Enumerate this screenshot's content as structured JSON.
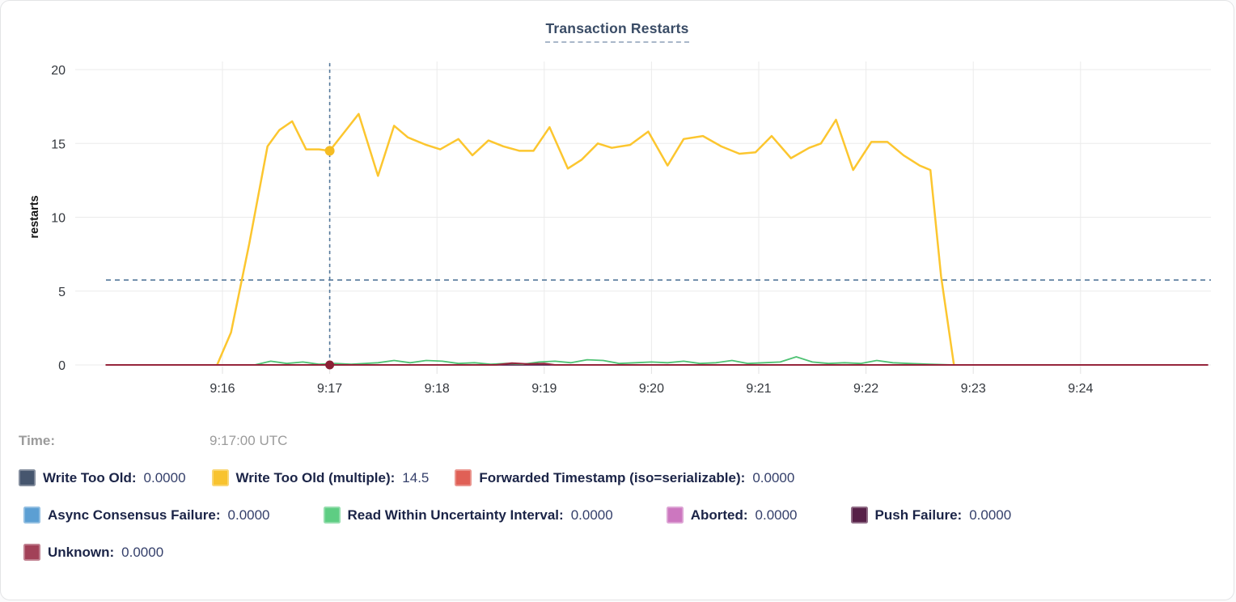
{
  "card": {
    "title": "Transaction Restarts"
  },
  "time_row": {
    "label": "Time:",
    "value": "9:17:00 UTC"
  },
  "legend": {
    "rows": [
      [
        {
          "id": "write-too-old",
          "label": "Write Too Old:",
          "value": "0.0000",
          "color": "#46566E"
        },
        {
          "id": "write-too-old-multiple",
          "label": "Write Too Old (multiple):",
          "value": "14.5",
          "color": "#F8C32F"
        },
        {
          "id": "forwarded-timestamp",
          "label": "Forwarded Timestamp (iso=serializable):",
          "value": "0.0000",
          "color": "#E06056"
        }
      ],
      [
        {
          "id": "async-consensus-failure",
          "label": "Async Consensus Failure:",
          "value": "0.0000",
          "color": "#5C9FD3"
        },
        {
          "id": "read-within-uncertainty-interval",
          "label": "Read Within Uncertainty Interval:",
          "value": "0.0000",
          "color": "#5ECD83"
        },
        {
          "id": "aborted",
          "label": "Aborted:",
          "value": "0.0000",
          "color": "#CC77BF"
        },
        {
          "id": "push-failure",
          "label": "Push Failure:",
          "value": "0.0000",
          "color": "#572148"
        }
      ],
      [
        {
          "id": "unknown",
          "label": "Unknown:",
          "value": "0.0000",
          "color": "#A24158"
        }
      ]
    ]
  },
  "chart_data": {
    "type": "line",
    "title": "Transaction Restarts",
    "xlabel": "",
    "ylabel": "restarts",
    "ylim": [
      0,
      20
    ],
    "yticks": [
      0,
      5,
      10,
      15,
      20
    ],
    "xtick_labels": [
      "9:16",
      "9:17",
      "9:18",
      "9:19",
      "9:20",
      "9:21",
      "9:22",
      "9:23",
      "9:24"
    ],
    "xtick_minutes": [
      16,
      17,
      18,
      19,
      20,
      21,
      22,
      23,
      24
    ],
    "x_domain_minutes": [
      14.91,
      25.19
    ],
    "grid": true,
    "legend_position": "bottom-left",
    "guides": {
      "crosshair_time_label": "9:17:00 UTC",
      "crosshair_minutes": 17.0,
      "horizontal_dashed_value": 5.75
    },
    "cursor_points": [
      {
        "series": "Write Too Old (multiple)",
        "t": 17.0,
        "v": 14.5,
        "color": "#F5BC22",
        "r": 6
      },
      {
        "series": "Unknown",
        "t": 17.0,
        "v": 0,
        "color": "#8C2135",
        "r": 5.5
      }
    ],
    "series": [
      {
        "id": "write-too-old",
        "name": "Write Too Old",
        "color": "#46566E",
        "width": 1.5,
        "points": [
          [
            15.95,
            0
          ],
          [
            22.82,
            0
          ]
        ]
      },
      {
        "id": "forwarded-timestamp",
        "name": "Forwarded Timestamp (iso=serializable)",
        "color": "#E06056",
        "width": 1.5,
        "points": [
          [
            15.95,
            0
          ],
          [
            22.82,
            0
          ]
        ]
      },
      {
        "id": "async-consensus-failure",
        "name": "Async Consensus Failure",
        "color": "#5C9FD3",
        "width": 1.5,
        "points": [
          [
            15.95,
            0
          ],
          [
            22.82,
            0
          ]
        ]
      },
      {
        "id": "aborted",
        "name": "Aborted",
        "color": "#CC77BF",
        "width": 1.5,
        "points": [
          [
            15.95,
            0
          ],
          [
            22.82,
            0
          ]
        ]
      },
      {
        "id": "push-failure",
        "name": "Push Failure",
        "color": "#572148",
        "width": 1.5,
        "points": [
          [
            15.95,
            0
          ],
          [
            22.82,
            0
          ]
        ]
      },
      {
        "id": "read-within-uncertainty-interval",
        "name": "Read Within Uncertainty Interval",
        "color": "#4EC273",
        "width": 1.8,
        "points": [
          [
            15.95,
            0
          ],
          [
            16.3,
            0
          ],
          [
            16.45,
            0.25
          ],
          [
            16.6,
            0.1
          ],
          [
            16.75,
            0.2
          ],
          [
            16.9,
            0.05
          ],
          [
            17.05,
            0.1
          ],
          [
            17.2,
            0.05
          ],
          [
            17.45,
            0.15
          ],
          [
            17.6,
            0.3
          ],
          [
            17.75,
            0.15
          ],
          [
            17.9,
            0.3
          ],
          [
            18.05,
            0.25
          ],
          [
            18.2,
            0.1
          ],
          [
            18.35,
            0.15
          ],
          [
            18.5,
            0.05
          ],
          [
            18.65,
            0.1
          ],
          [
            18.8,
            0.05
          ],
          [
            18.95,
            0.2
          ],
          [
            19.1,
            0.25
          ],
          [
            19.25,
            0.15
          ],
          [
            19.4,
            0.35
          ],
          [
            19.55,
            0.3
          ],
          [
            19.7,
            0.1
          ],
          [
            19.85,
            0.15
          ],
          [
            20.0,
            0.2
          ],
          [
            20.15,
            0.15
          ],
          [
            20.3,
            0.25
          ],
          [
            20.45,
            0.1
          ],
          [
            20.6,
            0.15
          ],
          [
            20.75,
            0.3
          ],
          [
            20.9,
            0.1
          ],
          [
            21.05,
            0.15
          ],
          [
            21.2,
            0.2
          ],
          [
            21.35,
            0.55
          ],
          [
            21.5,
            0.2
          ],
          [
            21.65,
            0.1
          ],
          [
            21.8,
            0.15
          ],
          [
            21.95,
            0.1
          ],
          [
            22.1,
            0.3
          ],
          [
            22.25,
            0.15
          ],
          [
            22.4,
            0.1
          ],
          [
            22.6,
            0.05
          ],
          [
            22.82,
            0
          ]
        ]
      },
      {
        "id": "write-too-old-multiple",
        "name": "Write Too Old (multiple)",
        "color": "#FCC62F",
        "width": 2.5,
        "points": [
          [
            15.95,
            0
          ],
          [
            16.08,
            2.2
          ],
          [
            16.25,
            8.2
          ],
          [
            16.42,
            14.8
          ],
          [
            16.53,
            15.9
          ],
          [
            16.65,
            16.5
          ],
          [
            16.78,
            14.6
          ],
          [
            16.9,
            14.6
          ],
          [
            17.0,
            14.5
          ],
          [
            17.13,
            15.7
          ],
          [
            17.27,
            17.0
          ],
          [
            17.45,
            12.8
          ],
          [
            17.6,
            16.2
          ],
          [
            17.73,
            15.4
          ],
          [
            17.9,
            14.9
          ],
          [
            18.03,
            14.6
          ],
          [
            18.2,
            15.3
          ],
          [
            18.33,
            14.2
          ],
          [
            18.48,
            15.2
          ],
          [
            18.62,
            14.8
          ],
          [
            18.77,
            14.5
          ],
          [
            18.9,
            14.5
          ],
          [
            19.05,
            16.1
          ],
          [
            19.22,
            13.3
          ],
          [
            19.35,
            13.9
          ],
          [
            19.5,
            15.0
          ],
          [
            19.63,
            14.7
          ],
          [
            19.8,
            14.9
          ],
          [
            19.97,
            15.8
          ],
          [
            20.15,
            13.5
          ],
          [
            20.3,
            15.3
          ],
          [
            20.48,
            15.5
          ],
          [
            20.65,
            14.8
          ],
          [
            20.82,
            14.3
          ],
          [
            20.97,
            14.4
          ],
          [
            21.12,
            15.5
          ],
          [
            21.3,
            14.0
          ],
          [
            21.47,
            14.7
          ],
          [
            21.58,
            15.0
          ],
          [
            21.72,
            16.6
          ],
          [
            21.88,
            13.2
          ],
          [
            22.05,
            15.1
          ],
          [
            22.2,
            15.1
          ],
          [
            22.35,
            14.2
          ],
          [
            22.5,
            13.5
          ],
          [
            22.6,
            13.2
          ],
          [
            22.7,
            6.0
          ],
          [
            22.82,
            0
          ]
        ]
      },
      {
        "id": "unknown",
        "name": "Unknown",
        "color": "#96253C",
        "width": 2,
        "points": [
          [
            14.91,
            0
          ],
          [
            18.55,
            0
          ],
          [
            18.7,
            0.12
          ],
          [
            18.85,
            0.06
          ],
          [
            19.0,
            0.1
          ],
          [
            19.1,
            0
          ],
          [
            25.19,
            0
          ]
        ]
      }
    ]
  }
}
